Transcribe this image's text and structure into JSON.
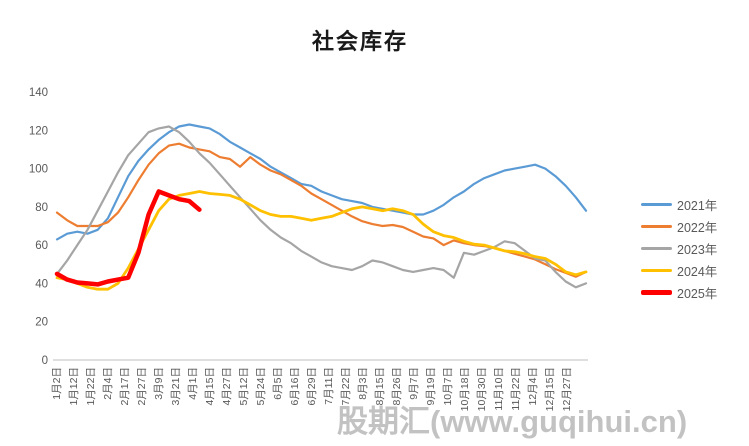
{
  "chart_data": {
    "type": "line",
    "title": "社会库存",
    "ylabel": "",
    "xlabel": "",
    "ylim": [
      0,
      140
    ],
    "y_ticks": [
      0,
      20,
      40,
      60,
      80,
      100,
      120,
      140
    ],
    "grid": false,
    "legend_position": "right-middle",
    "axis_color": "#bfbfbf",
    "tick_label_color": "#595959",
    "x_labels": [
      "1月2日",
      "1月12日",
      "1月22日",
      "2月4日",
      "2月17日",
      "2月27日",
      "3月9日",
      "3月21日",
      "4月1日",
      "4月15日",
      "4月27日",
      "5月12日",
      "5月24日",
      "6月5日",
      "6月16日",
      "6月29日",
      "7月11日",
      "7月22日",
      "8月3日",
      "8月15日",
      "8月26日",
      "9月7日",
      "9月19日",
      "10月7日",
      "10月18日",
      "10月30日",
      "11月10日",
      "11月22日",
      "12月4日",
      "12月15日",
      "12月27日"
    ],
    "x_unit": "week-index 0-52 across the year",
    "series": [
      {
        "name": "2021年",
        "color": "#5B9BD5",
        "line_width": 2.2,
        "values": [
          63,
          66,
          67,
          66,
          68,
          74,
          85,
          96,
          104,
          110,
          115,
          119,
          122,
          123,
          122,
          121,
          118,
          114,
          111,
          108,
          105,
          101,
          98,
          95,
          92,
          91,
          88,
          86,
          84,
          83,
          82,
          80,
          79,
          78,
          77,
          76,
          76,
          78,
          81,
          85,
          88,
          92,
          95,
          97,
          99,
          100,
          101,
          102,
          100,
          96,
          91,
          85,
          78
        ]
      },
      {
        "name": "2022年",
        "color": "#ED7D31",
        "line_width": 2.2,
        "values": [
          77,
          73,
          70,
          70,
          70,
          72,
          77,
          85,
          94,
          102,
          108,
          112,
          113,
          111,
          110,
          109,
          106,
          105,
          101,
          106,
          102,
          99,
          97,
          94,
          91,
          87,
          84,
          81,
          78,
          75,
          72.5,
          71,
          70,
          70.5,
          69.5,
          67,
          64.5,
          63.5,
          60,
          62.5,
          61,
          60,
          59.5,
          58.5,
          57,
          55.5,
          54,
          52.5,
          50,
          47.5,
          45.5,
          43.5,
          46
        ]
      },
      {
        "name": "2023年",
        "color": "#A5A5A5",
        "line_width": 2.2,
        "values": [
          45,
          52,
          60,
          68,
          78,
          88,
          98,
          107,
          113,
          119,
          121,
          122,
          119,
          114,
          108,
          103,
          97,
          91,
          85,
          79,
          73,
          68,
          64,
          61,
          57,
          54,
          51,
          49,
          48,
          47,
          49,
          52,
          51,
          49,
          47,
          46,
          47,
          48,
          47,
          43,
          56,
          55,
          57,
          59,
          62,
          61,
          57,
          53,
          52,
          46,
          41,
          38,
          40
        ]
      },
      {
        "name": "2024年",
        "color": "#FFC000",
        "line_width": 2.8,
        "values": [
          43,
          42,
          40,
          38,
          37,
          37,
          40,
          48,
          58,
          68,
          78,
          84,
          86,
          87,
          88,
          87,
          86.5,
          86,
          84,
          81,
          78,
          76,
          75,
          75,
          74,
          73,
          74,
          75,
          77,
          79,
          80,
          79,
          78,
          79,
          78,
          76,
          71,
          67,
          65,
          64,
          62,
          60.5,
          60,
          58.5,
          57,
          56.5,
          55.5,
          54,
          53,
          50,
          46,
          44.5,
          46
        ]
      },
      {
        "name": "2025年",
        "color": "#FF0000",
        "line_width": 4.5,
        "values": [
          45,
          42,
          40.5,
          40,
          39.5,
          41,
          42,
          43,
          56,
          76,
          88,
          86,
          84,
          83,
          78.5
        ]
      }
    ]
  },
  "watermark": {
    "text": "股期汇(www.guqihui.cn)"
  }
}
